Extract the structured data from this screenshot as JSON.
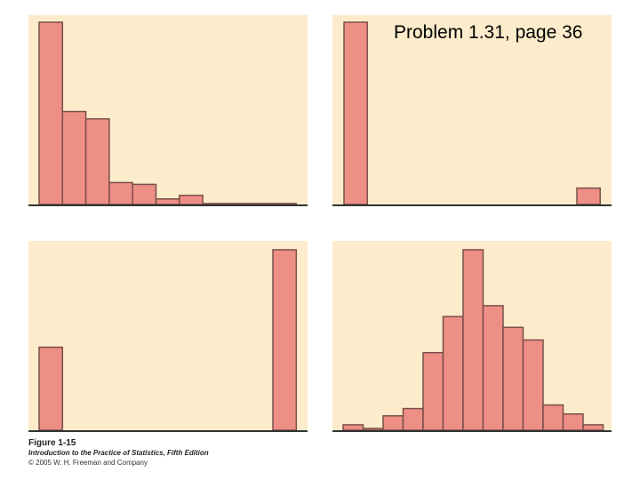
{
  "header": {
    "title": "Problem 1.31, page 36"
  },
  "caption": {
    "figure": "Figure 1-15",
    "book": "Introduction to the Practice of Statistics, Fifth Edition",
    "copyright": "© 2005 W. H. Freeman and Company"
  },
  "colors": {
    "panel_background": "#fdeccb",
    "bar_fill": "#ee8f86",
    "bar_stroke": "#7a4f49"
  },
  "chart_data": [
    {
      "type": "bar",
      "panel": "top-left",
      "values": [
        100,
        51,
        47,
        12,
        11,
        3,
        5,
        0.5,
        0.5,
        0.5,
        0.5
      ],
      "ylim": [
        0,
        100
      ]
    },
    {
      "type": "bar",
      "panel": "top-right",
      "values": [
        100,
        0,
        0,
        0,
        0,
        0,
        0,
        0,
        0,
        0,
        9
      ],
      "ylim": [
        0,
        100
      ]
    },
    {
      "type": "bar",
      "panel": "bottom-left",
      "values": [
        46,
        0,
        0,
        0,
        0,
        0,
        0,
        0,
        0,
        0,
        100
      ],
      "ylim": [
        0,
        100
      ]
    },
    {
      "type": "bar",
      "panel": "bottom-right",
      "values": [
        3,
        1,
        8,
        12,
        43,
        63,
        100,
        69,
        57,
        50,
        14,
        9,
        3
      ],
      "ylim": [
        0,
        100
      ]
    }
  ]
}
